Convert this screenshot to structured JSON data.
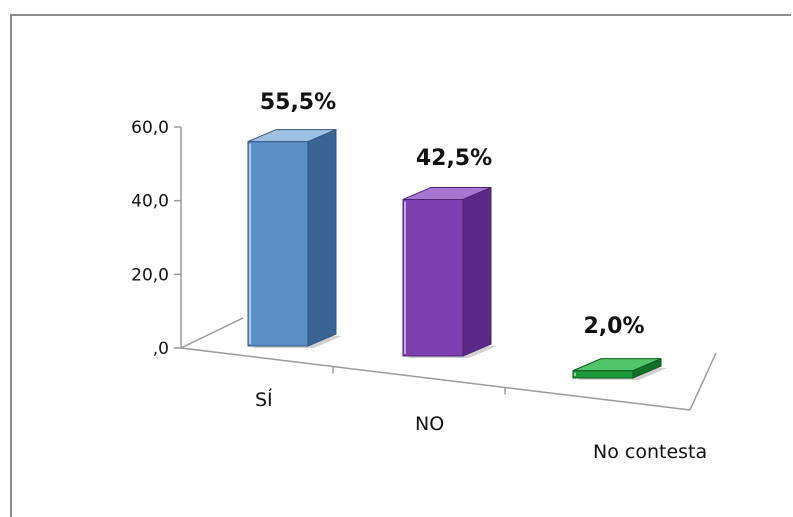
{
  "chart_data": {
    "type": "bar",
    "style": "3d-column",
    "categories": [
      "SÍ",
      "NO",
      "No contesta"
    ],
    "values": [
      55.5,
      42.5,
      2.0
    ],
    "data_labels": [
      "55,5%",
      "42,5%",
      "2,0%"
    ],
    "ylim": [
      0,
      60
    ],
    "y_ticks": [
      {
        "value": 0,
        "label": ",0"
      },
      {
        "value": 20,
        "label": "20,0"
      },
      {
        "value": 40,
        "label": "40,0"
      },
      {
        "value": 60,
        "label": "60,0"
      }
    ],
    "colors": [
      {
        "front": "#5b8fc6",
        "side": "#3a6494",
        "top": "#9ec0e3",
        "edge": "#2f5580"
      },
      {
        "front": "#7b3fb0",
        "side": "#5a2a86",
        "top": "#a676d0",
        "edge": "#4c2372"
      },
      {
        "front": "#1f9a3a",
        "side": "#147029",
        "top": "#52c46a",
        "edge": "#0e5a1f"
      }
    ],
    "legend": "none",
    "grid": false
  }
}
